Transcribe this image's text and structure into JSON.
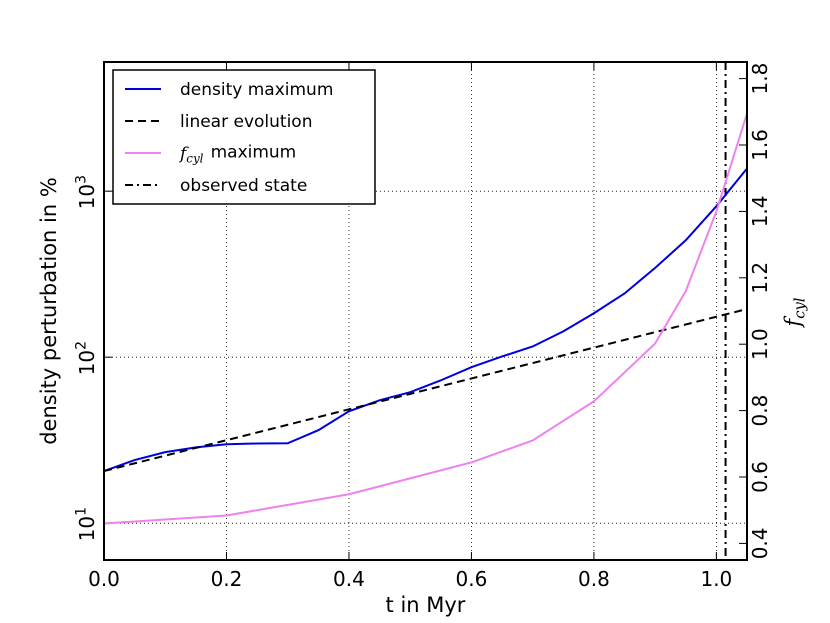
{
  "chart_data": {
    "type": "line",
    "xlabel": "t in Myr",
    "ylabel": "density perturbation in %",
    "y2label": "f_cyl",
    "xlim": [
      0,
      1.05
    ],
    "xticks": [
      {
        "value": 0,
        "label": "0.0"
      },
      0.2,
      0.4,
      0.6,
      0.8,
      {
        "value": 1,
        "label": "1.0"
      }
    ],
    "ylim": [
      6,
      6000
    ],
    "yscale": "log",
    "yticks": [
      {
        "value": 10,
        "label": "10^1"
      },
      {
        "value": 100,
        "label": "10^2"
      },
      {
        "value": 1000,
        "label": "10^3"
      }
    ],
    "y2lim": [
      0.35,
      1.85
    ],
    "y2ticks": [
      0.4,
      0.6,
      0.8,
      {
        "value": 1,
        "label": "1.0"
      },
      1.2,
      1.4,
      1.6,
      1.8
    ],
    "grid": true,
    "legend": "upper left",
    "series": [
      {
        "name": "density maximum",
        "color": "#0000dd",
        "style": "solid",
        "x": [
          0,
          0.05,
          0.1,
          0.15,
          0.2,
          0.25,
          0.3,
          0.35,
          0.4,
          0.45,
          0.5,
          0.55,
          0.6,
          0.65,
          0.7,
          0.75,
          0.8,
          0.85,
          0.9,
          0.95,
          1.0,
          1.05
        ],
        "values": [
          20.6,
          24,
          26.8,
          28.6,
          29.9,
          30.2,
          30.3,
          36.3,
          47.2,
          55,
          61.5,
          72.5,
          87,
          101,
          116,
          143,
          184,
          242,
          345,
          506,
          812,
          1370
        ]
      },
      {
        "name": "linear evolution",
        "color": "#000000",
        "style": "dashed",
        "x": [
          0,
          1.05
        ],
        "values": [
          20.6,
          195
        ]
      },
      {
        "name": "f_cyl maximum",
        "color": "#ee82ee",
        "style": "solid",
        "axis": "y2",
        "x": [
          0,
          0.2,
          0.4,
          0.6,
          0.7,
          0.8,
          0.9,
          0.95,
          1.0,
          1.05
        ],
        "values": [
          0.46,
          0.484,
          0.548,
          0.644,
          0.71,
          0.828,
          1.002,
          1.16,
          1.4,
          1.695
        ]
      }
    ],
    "vlines": [
      {
        "name": "observed state",
        "x": 1.015,
        "color": "#000000",
        "style": "dashdot"
      }
    ]
  }
}
